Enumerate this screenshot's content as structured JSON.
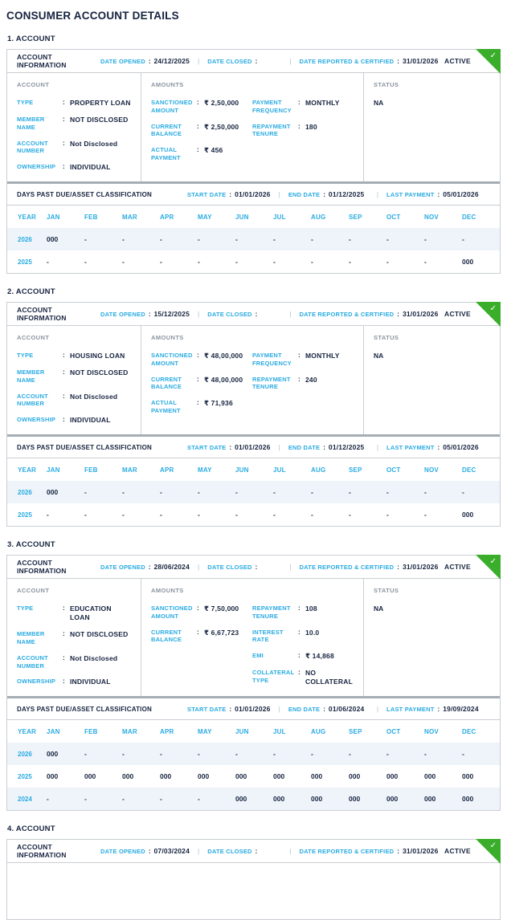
{
  "page": {
    "title": "CONSUMER ACCOUNT DETAILS"
  },
  "colors": {
    "label_cyan": "#29abe2",
    "text_navy": "#16233f",
    "active_green": "#3aad2b",
    "border_gray": "#c9ced3",
    "divider_gray": "#a6adb4",
    "muted_gray": "#8a949e",
    "row_alt_bg": "#eef4fa"
  },
  "icons": {
    "check": "✓"
  },
  "labels": {
    "account_info": "ACCOUNT INFORMATION",
    "date_opened": "DATE OPENED",
    "date_closed": "DATE CLOSED",
    "date_reported": "DATE REPORTED & CERTIFIED",
    "account_col": "ACCOUNT",
    "amounts_col": "AMOUNTS",
    "status_col": "STATUS",
    "dpd_title": "DAYS PAST DUE/ASSET CLASSIFICATION",
    "start_date": "START DATE",
    "end_date": "END DATE",
    "last_payment": "LAST PAYMENT",
    "year": "YEAR",
    "colon": ":",
    "separator": "|",
    "months": [
      "JAN",
      "FEB",
      "MAR",
      "APR",
      "MAY",
      "JUN",
      "JUL",
      "AUG",
      "SEP",
      "OCT",
      "NOV",
      "DEC"
    ]
  },
  "accounts": [
    {
      "number_label": "1. ACCOUNT",
      "date_opened": "24/12/2025",
      "date_closed": "",
      "date_reported": "31/01/2026",
      "status_badge": "ACTIVE",
      "truncated": false,
      "account_fields": [
        {
          "label": "TYPE",
          "value": "PROPERTY LOAN"
        },
        {
          "label": "MEMBER NAME",
          "value": "NOT DISCLOSED"
        },
        {
          "label": "ACCOUNT NUMBER",
          "value": "Not Disclosed"
        },
        {
          "label": "OWNERSHIP",
          "value": "INDIVIDUAL"
        }
      ],
      "amounts_left": [
        {
          "label": "SANCTIONED AMOUNT",
          "value": "₹ 2,50,000"
        },
        {
          "label": "CURRENT BALANCE",
          "value": "₹ 2,50,000"
        },
        {
          "label": "ACTUAL PAYMENT",
          "value": "₹ 456"
        }
      ],
      "amounts_right": [
        {
          "label": "PAYMENT FREQUENCY",
          "value": "MONTHLY"
        },
        {
          "label": "REPAYMENT TENURE",
          "value": "180"
        }
      ],
      "status_value": "NA",
      "dpd": {
        "start_date": "01/01/2026",
        "end_date": "01/12/2025",
        "last_payment": "05/01/2026",
        "rows": [
          {
            "year": "2026",
            "values": [
              "000",
              "-",
              "-",
              "-",
              "-",
              "-",
              "-",
              "-",
              "-",
              "-",
              "-",
              "-"
            ]
          },
          {
            "year": "2025",
            "values": [
              "-",
              "-",
              "-",
              "-",
              "-",
              "-",
              "-",
              "-",
              "-",
              "-",
              "-",
              "000"
            ]
          }
        ]
      }
    },
    {
      "number_label": "2. ACCOUNT",
      "date_opened": "15/12/2025",
      "date_closed": "",
      "date_reported": "31/01/2026",
      "status_badge": "ACTIVE",
      "truncated": false,
      "account_fields": [
        {
          "label": "TYPE",
          "value": "HOUSING LOAN"
        },
        {
          "label": "MEMBER NAME",
          "value": "NOT DISCLOSED"
        },
        {
          "label": "ACCOUNT NUMBER",
          "value": "Not Disclosed"
        },
        {
          "label": "OWNERSHIP",
          "value": "INDIVIDUAL"
        }
      ],
      "amounts_left": [
        {
          "label": "SANCTIONED AMOUNT",
          "value": "₹ 48,00,000"
        },
        {
          "label": "CURRENT BALANCE",
          "value": "₹ 48,00,000"
        },
        {
          "label": "ACTUAL PAYMENT",
          "value": "₹ 71,936"
        }
      ],
      "amounts_right": [
        {
          "label": "PAYMENT FREQUENCY",
          "value": "MONTHLY"
        },
        {
          "label": "REPAYMENT TENURE",
          "value": "240"
        }
      ],
      "status_value": "NA",
      "dpd": {
        "start_date": "01/01/2026",
        "end_date": "01/12/2025",
        "last_payment": "05/01/2026",
        "rows": [
          {
            "year": "2026",
            "values": [
              "000",
              "-",
              "-",
              "-",
              "-",
              "-",
              "-",
              "-",
              "-",
              "-",
              "-",
              "-"
            ]
          },
          {
            "year": "2025",
            "values": [
              "-",
              "-",
              "-",
              "-",
              "-",
              "-",
              "-",
              "-",
              "-",
              "-",
              "-",
              "000"
            ]
          }
        ]
      }
    },
    {
      "number_label": "3. ACCOUNT",
      "date_opened": "28/06/2024",
      "date_closed": "",
      "date_reported": "31/01/2026",
      "status_badge": "ACTIVE",
      "truncated": false,
      "account_fields": [
        {
          "label": "TYPE",
          "value": "EDUCATION LOAN"
        },
        {
          "label": "MEMBER NAME",
          "value": "NOT DISCLOSED"
        },
        {
          "label": "ACCOUNT NUMBER",
          "value": "Not Disclosed"
        },
        {
          "label": "OWNERSHIP",
          "value": "INDIVIDUAL"
        }
      ],
      "amounts_left": [
        {
          "label": "SANCTIONED AMOUNT",
          "value": "₹ 7,50,000"
        },
        {
          "label": "CURRENT BALANCE",
          "value": "₹ 6,67,723"
        }
      ],
      "amounts_right": [
        {
          "label": "REPAYMENT TENURE",
          "value": "108"
        },
        {
          "label": "INTEREST RATE",
          "value": "10.0"
        },
        {
          "label": "EMI",
          "value": "₹ 14,868"
        },
        {
          "label": "COLLATERAL TYPE",
          "value": "NO COLLATERAL"
        }
      ],
      "status_value": "NA",
      "dpd": {
        "start_date": "01/01/2026",
        "end_date": "01/06/2024",
        "last_payment": "19/09/2024",
        "rows": [
          {
            "year": "2026",
            "values": [
              "000",
              "-",
              "-",
              "-",
              "-",
              "-",
              "-",
              "-",
              "-",
              "-",
              "-",
              "-"
            ]
          },
          {
            "year": "2025",
            "values": [
              "000",
              "000",
              "000",
              "000",
              "000",
              "000",
              "000",
              "000",
              "000",
              "000",
              "000",
              "000"
            ]
          },
          {
            "year": "2024",
            "values": [
              "-",
              "-",
              "-",
              "-",
              "-",
              "000",
              "000",
              "000",
              "000",
              "000",
              "000",
              "000"
            ]
          }
        ]
      }
    },
    {
      "number_label": "4. ACCOUNT",
      "date_opened": "07/03/2024",
      "date_closed": "",
      "date_reported": "31/01/2026",
      "status_badge": "ACTIVE",
      "truncated": true,
      "account_fields": [],
      "amounts_left": [],
      "amounts_right": [],
      "status_value": "",
      "dpd": {
        "start_date": "",
        "end_date": "",
        "last_payment": "",
        "rows": []
      }
    }
  ]
}
